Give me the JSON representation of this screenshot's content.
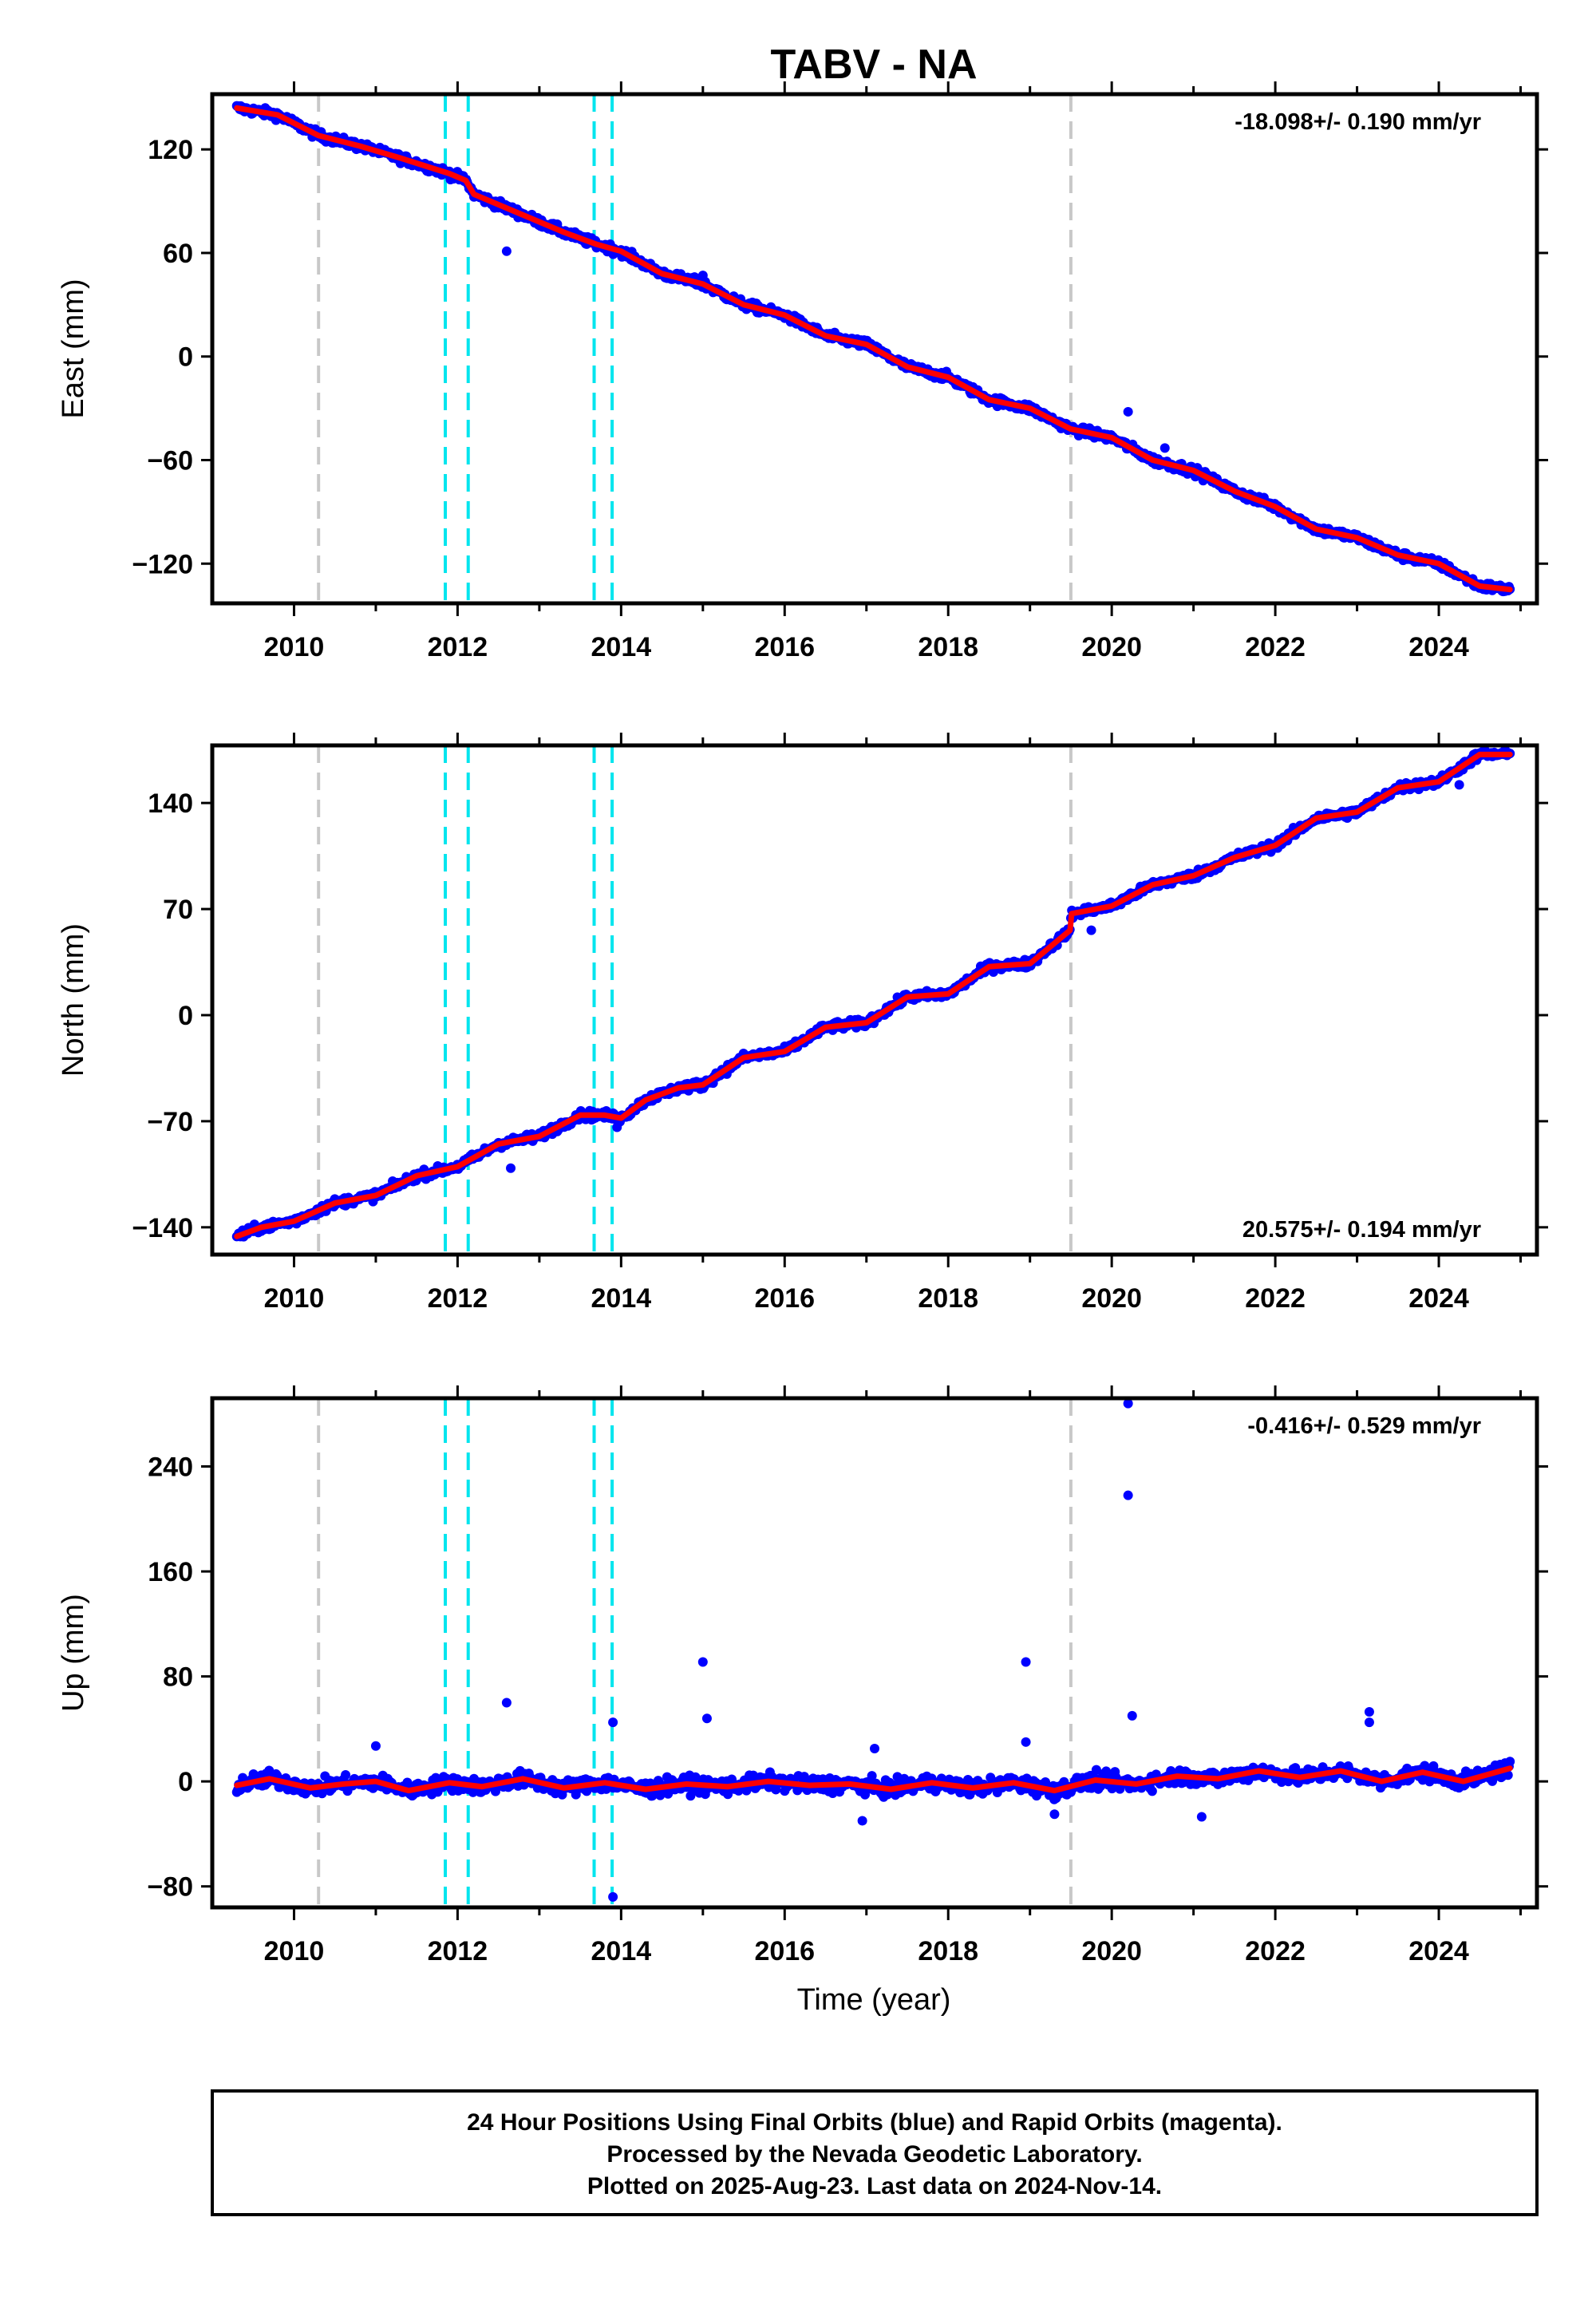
{
  "title": "TABV - NA",
  "x_axis_label": "Time (year)",
  "x_ticks": [
    "2010",
    "2012",
    "2014",
    "2016",
    "2018",
    "2020",
    "2022",
    "2024"
  ],
  "footer": {
    "line1": "24 Hour Positions Using Final Orbits (blue) and Rapid Orbits (magenta).",
    "line2": "Processed by the Nevada Geodetic Laboratory.",
    "line3": "Plotted on 2025-Aug-23. Last data on 2024-Nov-14."
  },
  "colors": {
    "data_points": "#0000ff",
    "fit_line": "#ff0000",
    "antenna_change": "#00e5ee",
    "equipment_change": "#c8c8c8"
  },
  "chart_data": [
    {
      "type": "scatter",
      "ylabel": "East (mm)",
      "rate_text": "-18.098+/- 0.190 mm/yr",
      "rate_position": "top-right",
      "xlim": [
        2009.0,
        2025.2
      ],
      "ylim": [
        -143,
        152
      ],
      "y_ticks": [
        120,
        60,
        0,
        -60,
        -120
      ],
      "grid": false,
      "vertical_lines_gray": [
        2010.3,
        2019.5
      ],
      "vertical_lines_cyan": [
        2011.85,
        2012.13,
        2013.67,
        2013.89
      ],
      "fit_knots": {
        "x": [
          2009.3,
          2009.8,
          2010.3,
          2010.8,
          2011.3,
          2011.9,
          2012.1,
          2012.2,
          2012.8,
          2013.3,
          2013.7,
          2014.0,
          2014.5,
          2015.0,
          2015.5,
          2016.0,
          2016.5,
          2017.0,
          2017.5,
          2018.0,
          2018.5,
          2019.0,
          2019.5,
          2020.0,
          2020.5,
          2021.0,
          2021.5,
          2022.0,
          2022.5,
          2023.0,
          2023.5,
          2024.0,
          2024.5,
          2024.87
        ],
        "y": [
          144,
          140,
          128,
          122,
          115,
          106,
          102,
          94,
          82,
          72,
          65,
          61,
          48,
          42,
          30,
          24,
          12,
          7,
          -6,
          -12,
          -25,
          -30,
          -42,
          -47,
          -60,
          -66,
          -78,
          -87,
          -100,
          -105,
          -115,
          -120,
          -133,
          -135
        ]
      },
      "outliers": {
        "x": [
          2012.6,
          2020.2,
          2015.0,
          2020.65
        ],
        "y": [
          61,
          -32,
          47,
          -53
        ]
      }
    },
    {
      "type": "scatter",
      "ylabel": "North (mm)",
      "rate_text": "20.575+/- 0.194 mm/yr",
      "rate_position": "bottom-right",
      "xlim": [
        2009.0,
        2025.2
      ],
      "ylim": [
        -158,
        178
      ],
      "y_ticks": [
        140,
        70,
        0,
        -70,
        -140
      ],
      "grid": false,
      "vertical_lines_gray": [
        2010.3,
        2019.5
      ],
      "vertical_lines_cyan": [
        2011.85,
        2012.13,
        2013.67,
        2013.89
      ],
      "fit_knots": {
        "x": [
          2009.3,
          2009.6,
          2010.0,
          2010.5,
          2011.0,
          2011.5,
          2012.0,
          2012.5,
          2013.0,
          2013.5,
          2013.8,
          2014.0,
          2014.3,
          2014.7,
          2015.0,
          2015.5,
          2016.0,
          2016.5,
          2017.0,
          2017.5,
          2018.0,
          2018.5,
          2019.0,
          2019.49,
          2019.51,
          2020.0,
          2020.5,
          2021.0,
          2021.5,
          2022.0,
          2022.5,
          2023.0,
          2023.5,
          2024.0,
          2024.5,
          2024.87
        ],
        "y": [
          -146,
          -140,
          -136,
          -124,
          -119,
          -106,
          -100,
          -85,
          -80,
          -66,
          -66,
          -68,
          -56,
          -48,
          -46,
          -28,
          -24,
          -8,
          -5,
          12,
          14,
          32,
          34,
          56,
          67,
          72,
          86,
          92,
          104,
          112,
          130,
          134,
          150,
          154,
          172,
          172
        ]
      },
      "outliers": {
        "x": [
          2012.65,
          2019.75,
          2013.95,
          2024.25
        ],
        "y": [
          -101,
          56,
          -74,
          152
        ]
      }
    },
    {
      "type": "scatter",
      "ylabel": "Up (mm)",
      "rate_text": "-0.416+/- 0.529 mm/yr",
      "rate_position": "top-right",
      "xlim": [
        2009.0,
        2025.2
      ],
      "ylim": [
        -96,
        292
      ],
      "y_ticks": [
        240,
        160,
        80,
        0,
        -80
      ],
      "grid": false,
      "vertical_lines_gray": [
        2010.3,
        2019.5
      ],
      "vertical_lines_cyan": [
        2011.85,
        2012.13,
        2013.67,
        2013.89
      ],
      "fit_knots": {
        "x": [
          2009.3,
          2009.7,
          2010.2,
          2010.6,
          2011.0,
          2011.4,
          2011.9,
          2012.3,
          2012.8,
          2013.3,
          2013.8,
          2014.3,
          2014.8,
          2015.3,
          2015.8,
          2016.3,
          2016.8,
          2017.3,
          2017.8,
          2018.3,
          2018.8,
          2019.3,
          2019.8,
          2020.3,
          2020.8,
          2021.3,
          2021.8,
          2022.3,
          2022.8,
          2023.3,
          2023.8,
          2024.3,
          2024.87
        ],
        "y": [
          -3,
          2,
          -5,
          -2,
          0,
          -7,
          -1,
          -4,
          2,
          -5,
          -1,
          -6,
          -2,
          -4,
          0,
          -3,
          -2,
          -6,
          -1,
          -5,
          -1,
          -7,
          1,
          -2,
          4,
          2,
          8,
          3,
          8,
          0,
          7,
          0,
          10
        ]
      },
      "outliers": {
        "x": [
          2020.2,
          2020.2,
          2015.0,
          2018.95,
          2012.6,
          2013.9,
          2013.9,
          2023.15,
          2023.15,
          2020.25,
          2015.05,
          2018.95,
          2011.0,
          2016.95,
          2017.1,
          2021.1,
          2019.3
        ],
        "y": [
          288,
          218,
          91,
          91,
          60,
          45,
          -88,
          53,
          45,
          50,
          48,
          30,
          27,
          -30,
          25,
          -27,
          -25
        ]
      }
    }
  ]
}
